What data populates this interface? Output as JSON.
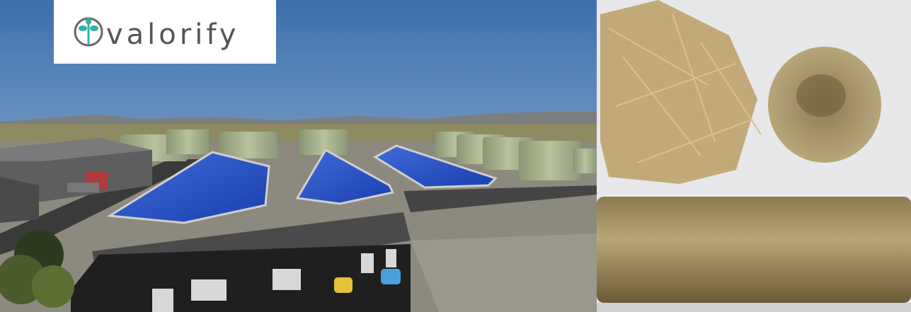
{
  "logo": {
    "text": "valorify"
  }
}
